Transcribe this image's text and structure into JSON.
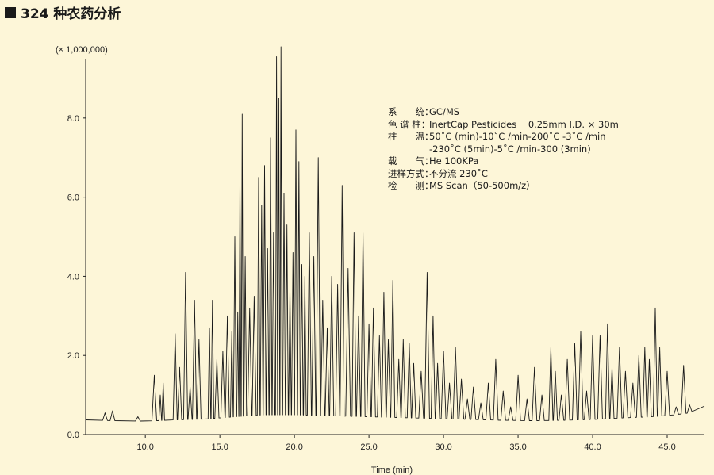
{
  "title": "324 种农药分析",
  "chart_data": {
    "type": "line",
    "title": "324 种农药分析",
    "xlabel": "Time (min)",
    "ylabel": "",
    "y_unit": "(× 1,000,000)",
    "xlim": [
      6,
      47.5
    ],
    "ylim": [
      0,
      9.5
    ],
    "x_ticks": [
      10.0,
      15.0,
      20.0,
      25.0,
      30.0,
      35.0,
      40.0,
      45.0
    ],
    "x_tick_labels": [
      "10.0",
      "15.0",
      "20.0",
      "25.0",
      "30.0",
      "35.0",
      "40.0",
      "45.0"
    ],
    "y_ticks": [
      0,
      2,
      4,
      6,
      8
    ],
    "y_tick_labels": [
      "0.0",
      "2.0",
      "4.0",
      "6.0",
      "8.0"
    ],
    "grid": false,
    "series": [
      {
        "baseline": [
          [
            6.0,
            0.37
          ],
          [
            8.0,
            0.35
          ],
          [
            10.0,
            0.34
          ],
          [
            12.0,
            0.37
          ],
          [
            14.0,
            0.39
          ],
          [
            16.0,
            0.45
          ],
          [
            18.0,
            0.5
          ],
          [
            20.0,
            0.5
          ],
          [
            22.0,
            0.48
          ],
          [
            24.0,
            0.46
          ],
          [
            26.0,
            0.44
          ],
          [
            28.0,
            0.42
          ],
          [
            30.0,
            0.4
          ],
          [
            32.0,
            0.38
          ],
          [
            34.0,
            0.36
          ],
          [
            36.0,
            0.35
          ],
          [
            38.0,
            0.36
          ],
          [
            40.0,
            0.38
          ],
          [
            42.0,
            0.42
          ],
          [
            44.0,
            0.45
          ],
          [
            45.5,
            0.5
          ],
          [
            46.5,
            0.55
          ],
          [
            47.0,
            0.65
          ],
          [
            47.5,
            0.72
          ]
        ],
        "peaks": [
          [
            7.3,
            0.55
          ],
          [
            7.8,
            0.6
          ],
          [
            9.5,
            0.45
          ],
          [
            10.6,
            1.5
          ],
          [
            11.0,
            1.0
          ],
          [
            11.2,
            1.3
          ],
          [
            12.0,
            2.55
          ],
          [
            12.3,
            1.7
          ],
          [
            12.7,
            4.1
          ],
          [
            13.0,
            1.2
          ],
          [
            13.3,
            3.4
          ],
          [
            13.6,
            2.4
          ],
          [
            14.3,
            2.7
          ],
          [
            14.5,
            3.4
          ],
          [
            14.8,
            1.9
          ],
          [
            15.2,
            2.1
          ],
          [
            15.5,
            3.0
          ],
          [
            15.8,
            2.6
          ],
          [
            16.0,
            5.0
          ],
          [
            16.2,
            3.1
          ],
          [
            16.35,
            6.5
          ],
          [
            16.5,
            8.1
          ],
          [
            16.7,
            4.5
          ],
          [
            17.0,
            3.2
          ],
          [
            17.3,
            3.5
          ],
          [
            17.6,
            6.5
          ],
          [
            17.8,
            5.8
          ],
          [
            18.0,
            6.8
          ],
          [
            18.2,
            4.7
          ],
          [
            18.4,
            7.5
          ],
          [
            18.6,
            5.1
          ],
          [
            18.8,
            9.55
          ],
          [
            18.95,
            8.5
          ],
          [
            19.1,
            9.8
          ],
          [
            19.3,
            6.1
          ],
          [
            19.5,
            5.3
          ],
          [
            19.7,
            3.7
          ],
          [
            19.9,
            4.6
          ],
          [
            20.1,
            7.7
          ],
          [
            20.3,
            6.9
          ],
          [
            20.5,
            4.3
          ],
          [
            20.7,
            4.0
          ],
          [
            21.0,
            5.1
          ],
          [
            21.3,
            4.5
          ],
          [
            21.6,
            7.0
          ],
          [
            21.9,
            3.4
          ],
          [
            22.2,
            2.7
          ],
          [
            22.5,
            4.0
          ],
          [
            22.9,
            3.8
          ],
          [
            23.2,
            6.3
          ],
          [
            23.6,
            4.2
          ],
          [
            24.0,
            5.1
          ],
          [
            24.3,
            3.0
          ],
          [
            24.6,
            5.1
          ],
          [
            25.0,
            2.8
          ],
          [
            25.3,
            3.2
          ],
          [
            25.7,
            2.5
          ],
          [
            26.0,
            3.6
          ],
          [
            26.3,
            2.4
          ],
          [
            26.6,
            3.9
          ],
          [
            27.0,
            1.9
          ],
          [
            27.3,
            2.4
          ],
          [
            27.7,
            2.3
          ],
          [
            28.0,
            1.8
          ],
          [
            28.5,
            1.6
          ],
          [
            28.9,
            4.1
          ],
          [
            29.3,
            3.0
          ],
          [
            29.6,
            1.8
          ],
          [
            30.0,
            2.1
          ],
          [
            30.4,
            1.3
          ],
          [
            30.8,
            2.2
          ],
          [
            31.2,
            1.4
          ],
          [
            31.6,
            0.9
          ],
          [
            32.0,
            1.2
          ],
          [
            32.5,
            0.8
          ],
          [
            33.0,
            1.3
          ],
          [
            33.5,
            1.9
          ],
          [
            34.0,
            1.1
          ],
          [
            34.5,
            0.7
          ],
          [
            35.0,
            1.5
          ],
          [
            35.6,
            0.9
          ],
          [
            36.1,
            1.7
          ],
          [
            36.6,
            1.0
          ],
          [
            37.2,
            2.2
          ],
          [
            37.5,
            1.6
          ],
          [
            37.9,
            1.0
          ],
          [
            38.3,
            1.9
          ],
          [
            38.8,
            2.3
          ],
          [
            39.2,
            2.6
          ],
          [
            39.6,
            1.1
          ],
          [
            40.0,
            2.5
          ],
          [
            40.5,
            2.5
          ],
          [
            41.0,
            2.8
          ],
          [
            41.3,
            1.7
          ],
          [
            41.8,
            2.2
          ],
          [
            42.2,
            1.6
          ],
          [
            42.7,
            1.3
          ],
          [
            43.1,
            2.0
          ],
          [
            43.5,
            2.2
          ],
          [
            43.8,
            1.9
          ],
          [
            44.2,
            3.2
          ],
          [
            44.5,
            2.2
          ],
          [
            45.0,
            1.6
          ],
          [
            45.6,
            0.7
          ],
          [
            46.1,
            1.75
          ],
          [
            46.5,
            0.75
          ]
        ]
      }
    ]
  },
  "conditions": [
    {
      "key": "系　　统",
      "value": "GC/MS"
    },
    {
      "key": "色 谱 柱",
      "value": "InertCap Pesticides    0.25mm I.D. × 30m"
    },
    {
      "key": "柱　　温",
      "value": "50˚C (min)-10˚C /min-200˚C -3˚C /min"
    },
    {
      "key": "",
      "value": "-230˚C (5min)-5˚C /min-300 (3min)"
    },
    {
      "key": "载　　气",
      "value": "He 100KPa"
    },
    {
      "key": "进样方式",
      "value": "不分流 230˚C"
    },
    {
      "key": "检　　测",
      "value": "MS Scan（50-500m/z）"
    }
  ]
}
